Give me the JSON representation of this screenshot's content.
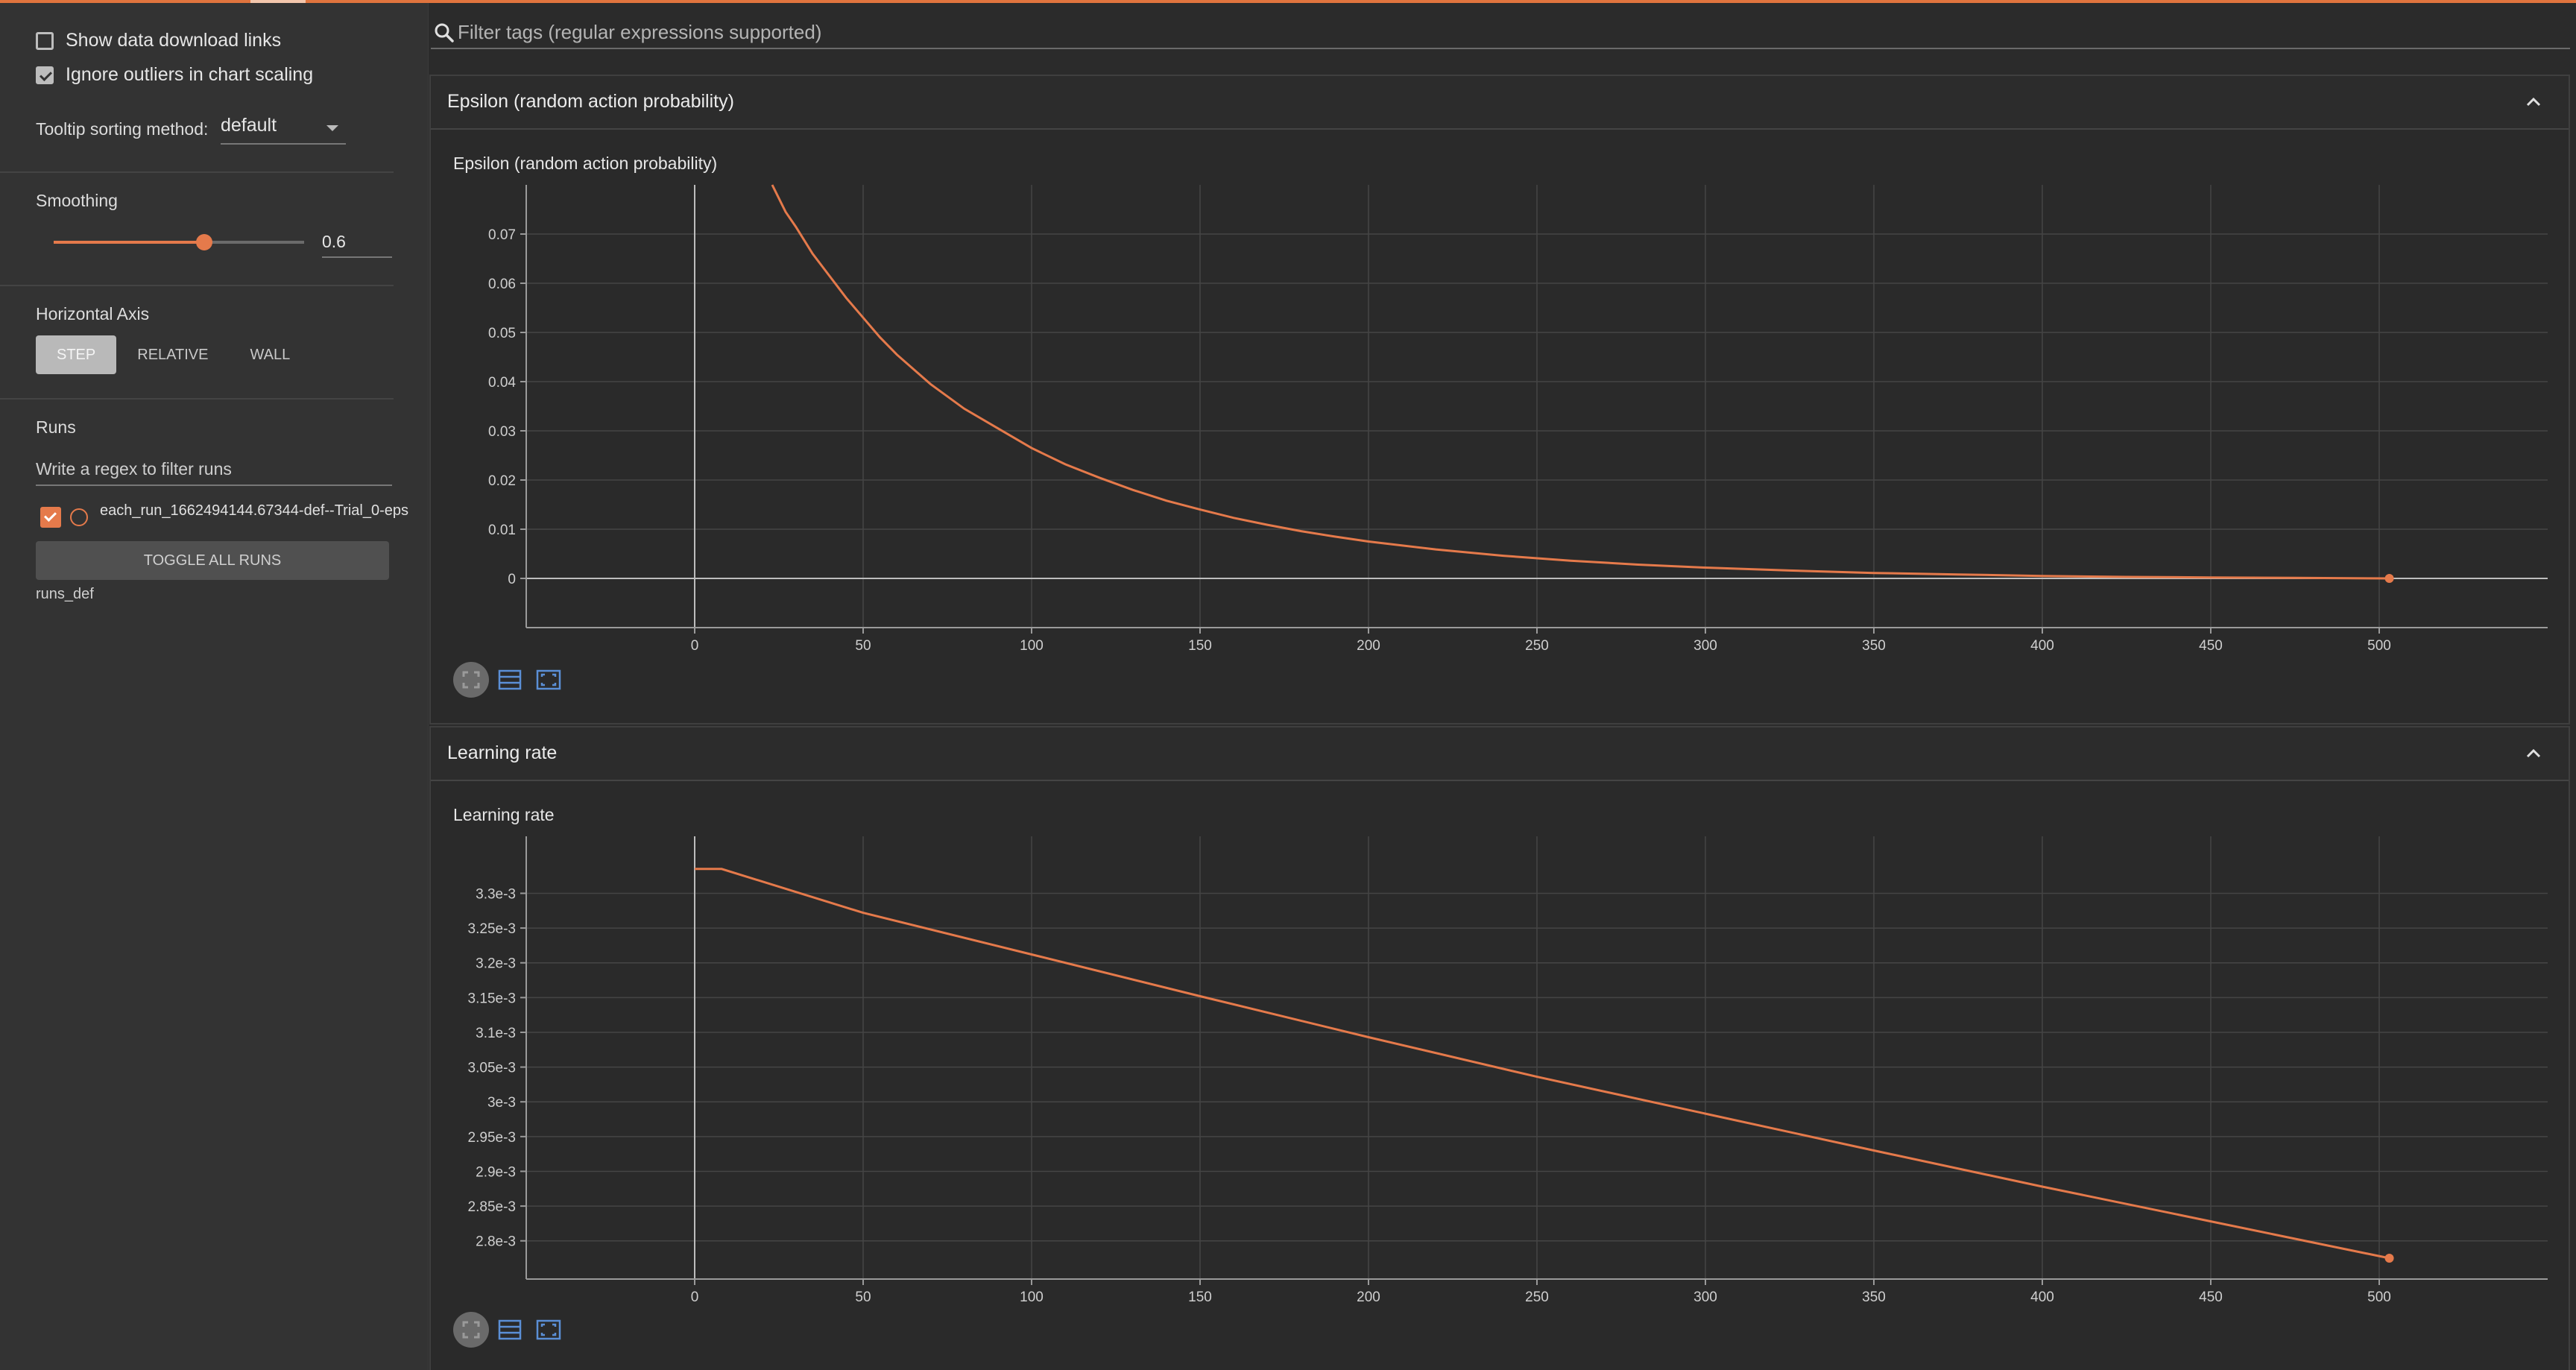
{
  "sidebar": {
    "show_download_links": "Show data download links",
    "ignore_outliers": "Ignore outliers in chart scaling",
    "tooltip_label": "Tooltip sorting method:",
    "tooltip_value": "default",
    "smoothing_label": "Smoothing",
    "smoothing_value": "0.6",
    "smoothing_fraction": 0.6,
    "horizontal_axis_label": "Horizontal Axis",
    "axis_buttons": [
      "STEP",
      "RELATIVE",
      "WALL"
    ],
    "runs_label": "Runs",
    "runs_filter_placeholder": "Write a regex to filter runs",
    "run_name": "each_run_1662494144.67344-def--Trial_0-eps",
    "toggle_all": "TOGGLE ALL RUNS",
    "runs_dir": "runs_def"
  },
  "search": {
    "placeholder": "Filter tags (regular expressions supported)"
  },
  "colors": {
    "accent": "#e57a4b",
    "background": "#2b2b2b",
    "panel": "#333333"
  },
  "icons": [
    "search-icon",
    "chevron-up-icon",
    "fullscreen-icon",
    "data-table-icon",
    "fit-domain-icon"
  ],
  "cards": [
    {
      "header": "Epsilon (random action probability)"
    },
    {
      "header": "Learning rate"
    }
  ],
  "chart_data": [
    {
      "type": "line",
      "title": "Epsilon (random action probability)",
      "xlim": [
        -50,
        550
      ],
      "ylim": [
        -0.01,
        0.08
      ],
      "xticks": [
        0,
        50,
        100,
        150,
        200,
        250,
        300,
        350,
        400,
        450,
        500
      ],
      "yticks": [
        0,
        0.01,
        0.02,
        0.03,
        0.04,
        0.05,
        0.06,
        0.07
      ],
      "ytick_labels": [
        "0",
        "0.01",
        "0.02",
        "0.03",
        "0.04",
        "0.05",
        "0.06",
        "0.07"
      ],
      "series": [
        {
          "x": [
            23,
            27,
            30,
            35,
            40,
            45,
            50,
            55,
            60,
            70,
            80,
            90,
            100,
            110,
            120,
            130,
            140,
            150,
            160,
            170,
            180,
            190,
            200,
            220,
            240,
            260,
            280,
            300,
            325,
            350,
            375,
            400,
            425,
            450,
            475,
            503
          ],
          "y": [
            0.08,
            0.0745,
            0.0715,
            0.066,
            0.0615,
            0.057,
            0.053,
            0.049,
            0.0455,
            0.0395,
            0.0345,
            0.0305,
            0.0265,
            0.0232,
            0.0205,
            0.018,
            0.0158,
            0.014,
            0.0123,
            0.0109,
            0.0096,
            0.0085,
            0.0075,
            0.0059,
            0.0046,
            0.0036,
            0.0028,
            0.0022,
            0.0016,
            0.0011,
            0.0008,
            0.0005,
            0.0003,
            0.0002,
            0.0001,
            0.0
          ]
        }
      ]
    },
    {
      "type": "line",
      "title": "Learning rate",
      "xlim": [
        -50,
        550
      ],
      "ylim": [
        0.002745,
        0.003382
      ],
      "xticks": [
        0,
        50,
        100,
        150,
        200,
        250,
        300,
        350,
        400,
        450,
        500
      ],
      "yticks": [
        0.0028,
        0.00285,
        0.0029,
        0.00295,
        0.003,
        0.00305,
        0.0031,
        0.00315,
        0.0032,
        0.00325,
        0.0033
      ],
      "ytick_labels": [
        "2.8e-3",
        "2.85e-3",
        "2.9e-3",
        "2.95e-3",
        "3e-3",
        "3.05e-3",
        "3.1e-3",
        "3.15e-3",
        "3.2e-3",
        "3.25e-3",
        "3.3e-3"
      ],
      "series": [
        {
          "x": [
            0,
            8,
            50,
            100,
            150,
            200,
            250,
            300,
            350,
            400,
            450,
            480,
            503
          ],
          "y": [
            0.003335,
            0.003335,
            0.003272,
            0.003212,
            0.003152,
            0.003093,
            0.003036,
            0.002983,
            0.00293,
            0.002878,
            0.002828,
            0.002798,
            0.002775
          ]
        }
      ]
    }
  ]
}
